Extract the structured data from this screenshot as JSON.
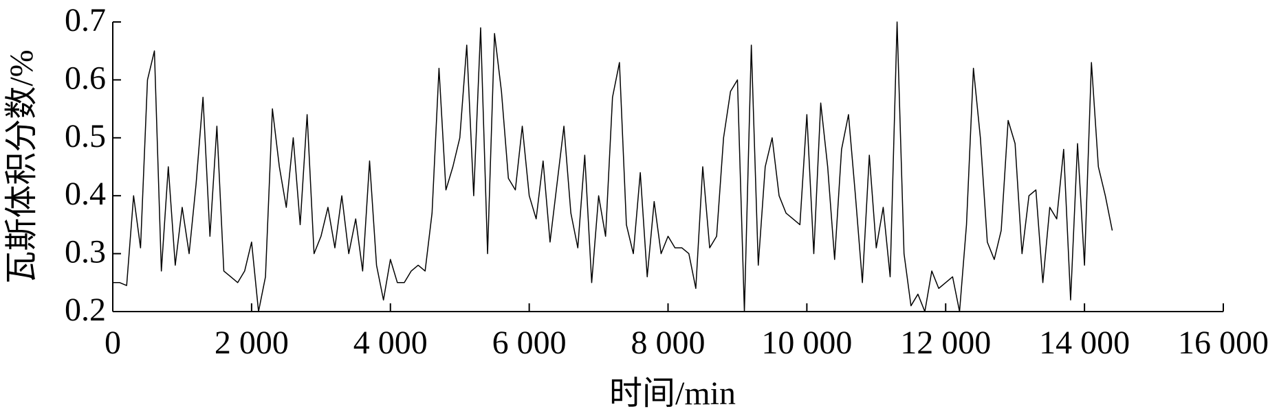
{
  "chart_data": {
    "type": "line",
    "xlabel": "时间/min",
    "ylabel": "瓦斯体积分数/%",
    "x": [
      0,
      100,
      200,
      300,
      400,
      500,
      600,
      700,
      800,
      900,
      1000,
      1100,
      1200,
      1300,
      1400,
      1500,
      1600,
      1700,
      1800,
      1900,
      2000,
      2100,
      2200,
      2300,
      2400,
      2500,
      2600,
      2700,
      2800,
      2900,
      3000,
      3100,
      3200,
      3300,
      3400,
      3500,
      3600,
      3700,
      3800,
      3900,
      4000,
      4100,
      4200,
      4300,
      4400,
      4500,
      4600,
      4700,
      4800,
      4900,
      5000,
      5100,
      5200,
      5300,
      5400,
      5500,
      5600,
      5700,
      5800,
      5900,
      6000,
      6100,
      6200,
      6300,
      6400,
      6500,
      6600,
      6700,
      6800,
      6900,
      7000,
      7100,
      7200,
      7300,
      7400,
      7500,
      7600,
      7700,
      7800,
      7900,
      8000,
      8100,
      8200,
      8300,
      8400,
      8500,
      8600,
      8700,
      8800,
      8900,
      9000,
      9100,
      9200,
      9300,
      9400,
      9500,
      9600,
      9700,
      9800,
      9900,
      10000,
      10100,
      10200,
      10300,
      10400,
      10500,
      10600,
      10700,
      10800,
      10900,
      11000,
      11100,
      11200,
      11300,
      11400,
      11500,
      11600,
      11700,
      11800,
      11900,
      12000,
      12100,
      12200,
      12300,
      12400,
      12500,
      12600,
      12700,
      12800,
      12900,
      13000,
      13100,
      13200,
      13300,
      13400,
      13500,
      13600,
      13700,
      13800,
      13900,
      14000,
      14100,
      14200,
      14300,
      14400
    ],
    "series": [
      {
        "color": "#000000",
        "values": [
          0.25,
          0.25,
          0.245,
          0.4,
          0.31,
          0.6,
          0.65,
          0.27,
          0.45,
          0.28,
          0.38,
          0.3,
          0.42,
          0.57,
          0.33,
          0.52,
          0.27,
          0.26,
          0.25,
          0.27,
          0.32,
          0.2,
          0.26,
          0.55,
          0.45,
          0.38,
          0.5,
          0.35,
          0.54,
          0.3,
          0.33,
          0.38,
          0.31,
          0.4,
          0.3,
          0.36,
          0.27,
          0.46,
          0.28,
          0.22,
          0.29,
          0.25,
          0.25,
          0.27,
          0.28,
          0.27,
          0.37,
          0.62,
          0.41,
          0.45,
          0.5,
          0.66,
          0.4,
          0.69,
          0.3,
          0.68,
          0.58,
          0.43,
          0.41,
          0.52,
          0.4,
          0.36,
          0.46,
          0.32,
          0.42,
          0.52,
          0.37,
          0.31,
          0.47,
          0.25,
          0.4,
          0.33,
          0.57,
          0.63,
          0.35,
          0.3,
          0.44,
          0.26,
          0.39,
          0.3,
          0.33,
          0.31,
          0.31,
          0.3,
          0.24,
          0.45,
          0.31,
          0.33,
          0.5,
          0.58,
          0.6,
          0.2,
          0.66,
          0.28,
          0.45,
          0.5,
          0.4,
          0.37,
          0.36,
          0.35,
          0.54,
          0.3,
          0.56,
          0.45,
          0.29,
          0.48,
          0.54,
          0.4,
          0.25,
          0.47,
          0.31,
          0.38,
          0.26,
          0.7,
          0.3,
          0.21,
          0.23,
          0.2,
          0.27,
          0.24,
          0.25,
          0.26,
          0.2,
          0.35,
          0.62,
          0.5,
          0.32,
          0.29,
          0.34,
          0.53,
          0.49,
          0.3,
          0.4,
          0.41,
          0.25,
          0.38,
          0.36,
          0.48,
          0.22,
          0.49,
          0.28,
          0.63,
          0.45,
          0.4,
          0.34
        ]
      }
    ],
    "xlim": [
      0,
      16000
    ],
    "xticks": [
      0,
      {
        "value": 2000,
        "label": "2 000"
      },
      {
        "value": 4000,
        "label": "4 000"
      },
      {
        "value": 6000,
        "label": "6 000"
      },
      {
        "value": 8000,
        "label": "8 000"
      },
      {
        "value": 10000,
        "label": "10 000"
      },
      {
        "value": 12000,
        "label": "12 000"
      },
      {
        "value": 14000,
        "label": "14 000"
      },
      {
        "value": 16000,
        "label": "16 000"
      }
    ],
    "ylim": [
      0.2,
      0.7
    ],
    "yticks": [
      0.2,
      0.3,
      0.4,
      0.5,
      0.6,
      0.7
    ],
    "grid": false
  }
}
